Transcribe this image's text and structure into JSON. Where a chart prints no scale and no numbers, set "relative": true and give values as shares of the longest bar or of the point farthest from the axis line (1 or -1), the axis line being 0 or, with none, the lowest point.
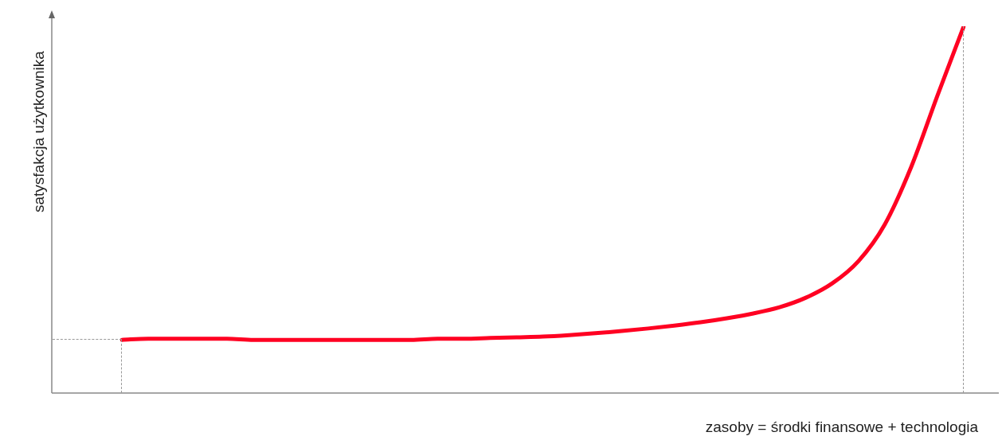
{
  "chart_data": {
    "type": "line",
    "relative": true,
    "xlabel": "zasoby = środki finansowe + technologia",
    "ylabel": "satysfakcja użytkownika",
    "categories": [
      null,
      null,
      null,
      null,
      null,
      null,
      null,
      null,
      null,
      null,
      null,
      null,
      null,
      null,
      null,
      null,
      null,
      null,
      null,
      null,
      null,
      null,
      null,
      null,
      null,
      null,
      null,
      null,
      null,
      null,
      null,
      null,
      null
    ],
    "series": [
      {
        "color": "#ff0022",
        "values": [
          0.145,
          0.148,
          0.148,
          0.148,
          0.148,
          0.145,
          0.145,
          0.145,
          0.145,
          0.145,
          0.145,
          0.145,
          0.148,
          0.148,
          0.15,
          0.152,
          0.154,
          0.158,
          0.163,
          0.169,
          0.176,
          0.184,
          0.193,
          0.204,
          0.217,
          0.234,
          0.26,
          0.299,
          0.36,
          0.46,
          0.616,
          0.811,
          1.0
        ]
      }
    ],
    "marker": "none",
    "legend": false
  }
}
